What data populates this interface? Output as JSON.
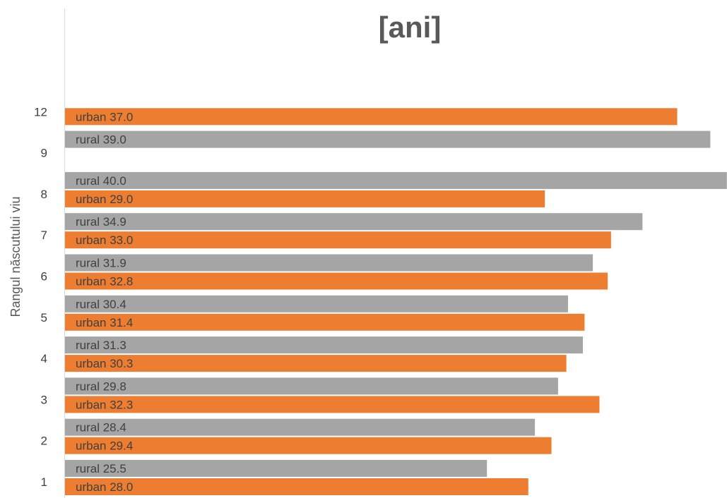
{
  "chart_data": {
    "type": "bar",
    "orientation": "horizontal",
    "title": "[ani]",
    "xlabel": "",
    "ylabel": "Rangul născutului viu",
    "xlim": [
      0,
      40
    ],
    "grid": false,
    "legend": "none",
    "categories": [
      "1",
      "2",
      "3",
      "4",
      "5",
      "6",
      "7",
      "8",
      "9",
      "12"
    ],
    "series": [
      {
        "name": "rural",
        "color": "#A5A5A5",
        "values": [
          25.5,
          28.4,
          29.8,
          31.3,
          30.4,
          31.9,
          34.9,
          40.0,
          39.0,
          null
        ],
        "labels": [
          "rural 25.5",
          "rural 28.4",
          "rural 29.8",
          "rural 31.3",
          "rural 30.4",
          "rural 31.9",
          "rural 34.9",
          "rural 40.0",
          "rural 39.0",
          ""
        ]
      },
      {
        "name": "urban",
        "color": "#ED7D31",
        "values": [
          28.0,
          29.4,
          32.3,
          30.3,
          31.4,
          32.8,
          33.0,
          29.0,
          null,
          37.0
        ],
        "labels": [
          "urban 28.0",
          "urban 29.4",
          "urban 32.3",
          "urban 30.3",
          "urban 31.4",
          "urban 32.8",
          "urban 33.0",
          "urban 29.0",
          "",
          "urban 37.0"
        ]
      }
    ]
  }
}
